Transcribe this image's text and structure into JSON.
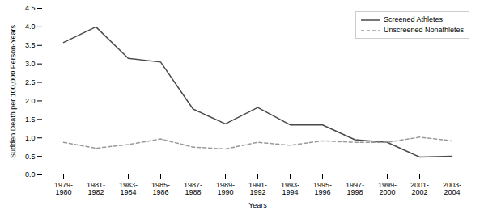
{
  "chart_data": {
    "type": "line",
    "xlabel": "Years",
    "ylabel": "Sudden Death per 100,000 Person-Years",
    "categories": [
      "1979-\n1980",
      "1981-\n1982",
      "1983-\n1984",
      "1985-\n1986",
      "1987-\n1988",
      "1989-\n1990",
      "1991-\n1992",
      "1993-\n1994",
      "1995-\n1996",
      "1997-\n1998",
      "1999-\n2000",
      "2001-\n2002",
      "2003-\n2004"
    ],
    "series": [
      {
        "name": "Screened Athletes",
        "color": "#4a4a4a",
        "line_style": "solid",
        "values": [
          3.58,
          4.0,
          3.15,
          3.05,
          1.78,
          1.38,
          1.82,
          1.35,
          1.35,
          0.95,
          0.88,
          0.48,
          0.5
        ]
      },
      {
        "name": "Unscreened Nonathletes",
        "color": "#999999",
        "line_style": "dashed",
        "values": [
          0.88,
          0.72,
          0.82,
          0.97,
          0.75,
          0.7,
          0.88,
          0.8,
          0.92,
          0.88,
          0.88,
          1.02,
          0.92
        ]
      }
    ],
    "ylim": [
      0,
      4.5
    ],
    "yticks": [
      {
        "value": 0,
        "label": "0.0"
      },
      {
        "value": 0.5,
        "label": "0.5"
      },
      {
        "value": 1.0,
        "label": "1.0"
      },
      {
        "value": 1.5,
        "label": "1.5"
      },
      {
        "value": 2.0,
        "label": "2.0"
      },
      {
        "value": 2.5,
        "label": "2.5"
      },
      {
        "value": 3.0,
        "label": "3.0"
      },
      {
        "value": 3.5,
        "label": "3.5"
      },
      {
        "value": 4.0,
        "label": "4.0"
      },
      {
        "value": 4.5,
        "label": "4.5"
      }
    ],
    "legend": "upper right",
    "grid": false
  }
}
